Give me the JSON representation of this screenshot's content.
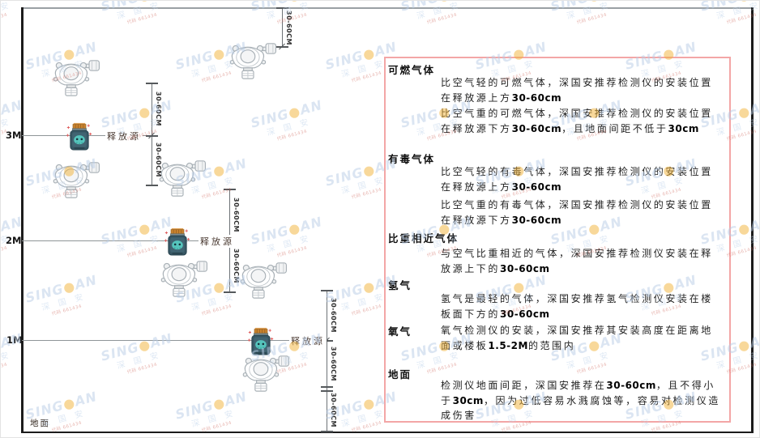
{
  "diagram": {
    "height_labels": {
      "m3": "3M",
      "m2": "2M",
      "m1": "1M"
    },
    "ground_label": "地面",
    "source_label": "释放源",
    "dim_label": "30-60CM"
  },
  "panel": {
    "sections": [
      {
        "heading": "可燃气体",
        "p1": "比空气轻的可燃气体，深国安推荐检测仪的安装位置在释放源上方30-60cm",
        "p2": "比空气重的可燃气体，深国安推荐检测仪的安装位置在释放源下方30-60cm，且地面间距不低于30cm"
      },
      {
        "heading": "有毒气体",
        "p1": "比空气轻的有毒气体，深国安推荐检测仪的安装位置在释放源上方30-60cm",
        "p2": "比空气重的有毒气体，深国安推荐检测仪的安装位置在释放源下方30-60cm"
      },
      {
        "heading": "比重相近气体",
        "p1": "与空气比重相近的气体，深国安推荐检测仪安装在释放源上下的30-60cm"
      },
      {
        "heading": "氢气",
        "p1": "氢气是最轻的气体，深国安推荐氢气检测仪安装在楼板面下方的30-60cm"
      },
      {
        "heading": "氧气",
        "p1": "氧气检测仪的安装，深国安推荐其安装高度在距离地面或楼板1.5-2M的范围内"
      },
      {
        "heading": "地面",
        "p1": "检测仪地面间距，深国安推荐在30-60cm，且不得小于30cm，因为过低容易水溅腐蚀等，容易对检测仪造成伤害"
      }
    ]
  },
  "watermark": {
    "brand_left": "SING",
    "dot": "●",
    "brand_right": "AN",
    "cn": "深 国 安",
    "code": "代码 661434"
  },
  "colors": {
    "panel_border": "#f3a6a6",
    "source_body": "#375663",
    "source_cap": "#c8822e",
    "watermark_blue": "#b9cde6",
    "watermark_dot": "#f2b338"
  }
}
